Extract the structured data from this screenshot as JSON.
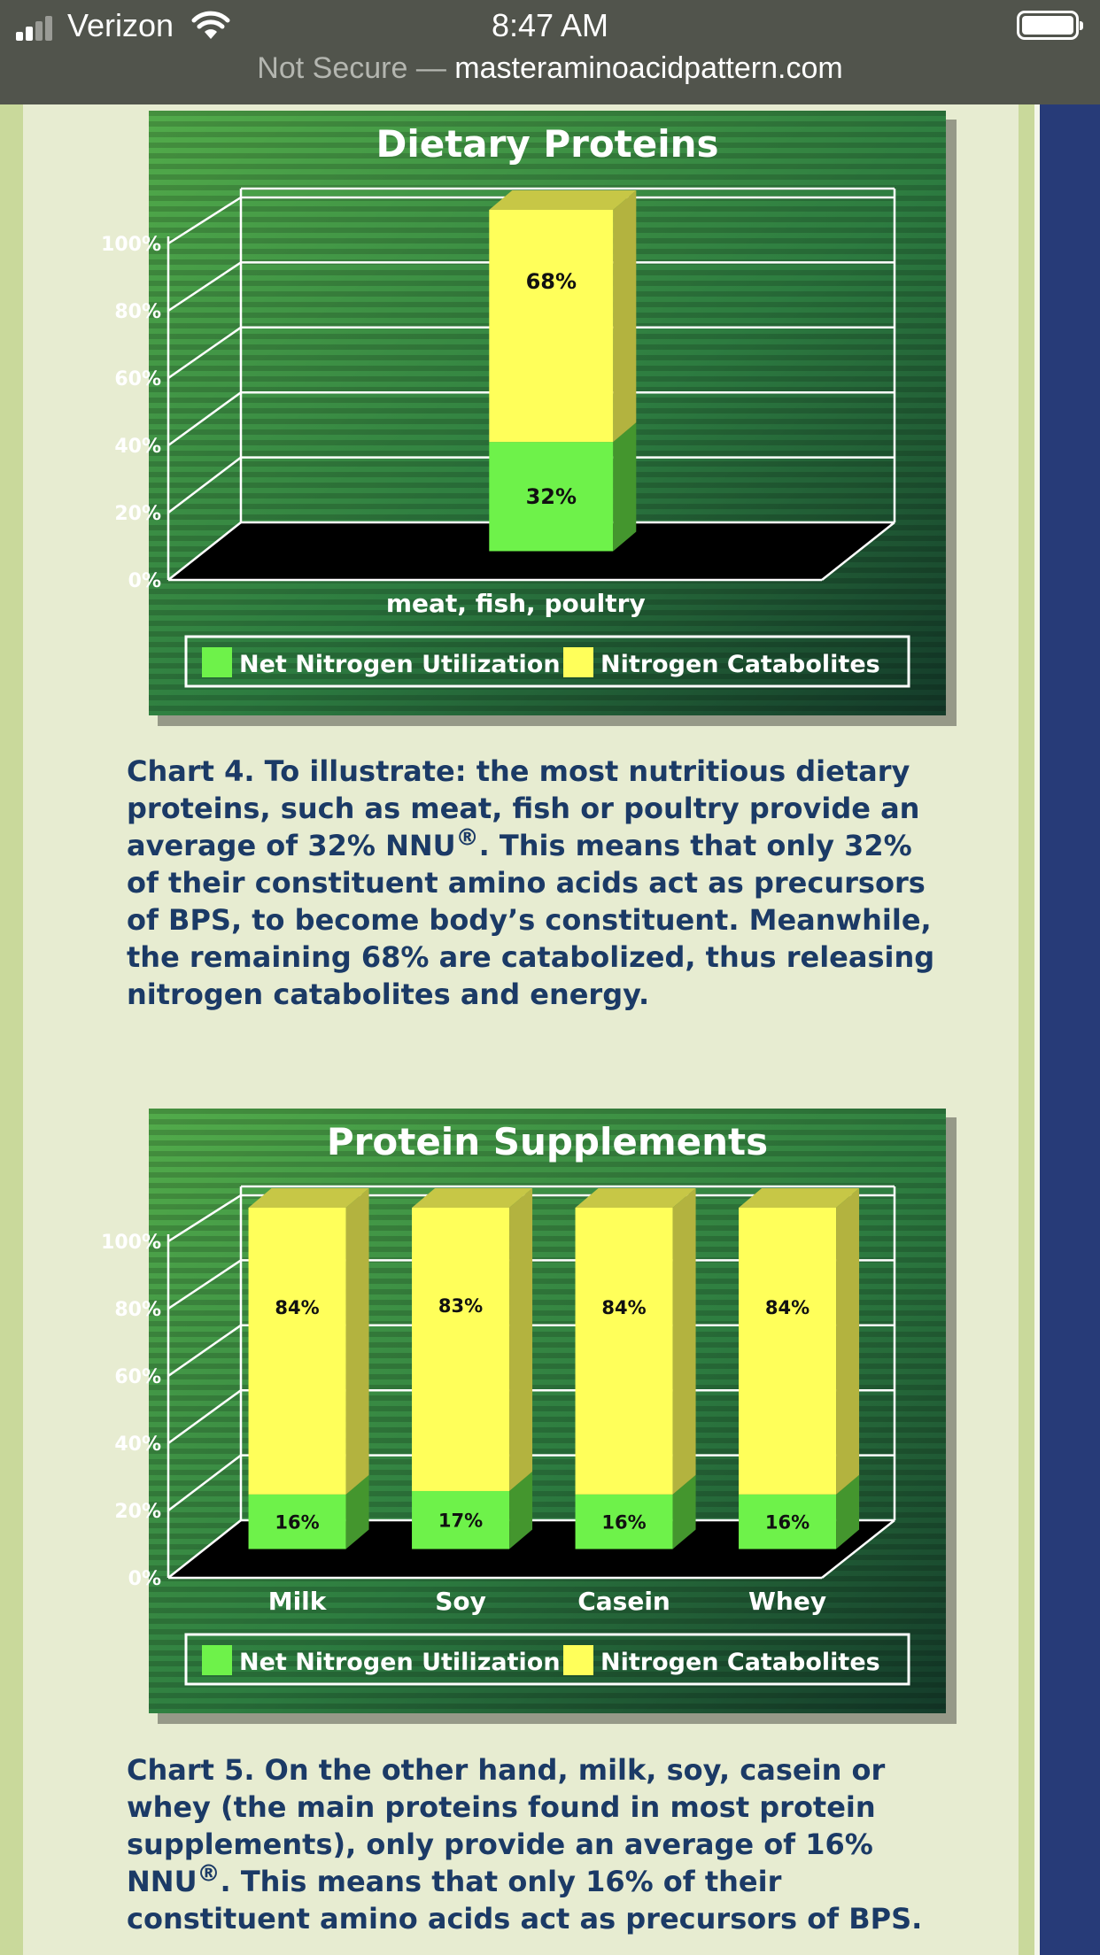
{
  "status_bar": {
    "carrier": "Verizon",
    "time": "8:47 AM",
    "url_prefix": "Not Secure —",
    "url_host": "masteraminoacidpattern.com"
  },
  "charts": [
    {
      "title": "Dietary Proteins",
      "y_ticks": [
        "0%",
        "20%",
        "40%",
        "60%",
        "80%",
        "100%"
      ],
      "legend": [
        "Net Nitrogen Utilization",
        "Nitrogen Catabolites"
      ]
    },
    {
      "title": "Protein Supplements",
      "y_ticks": [
        "0%",
        "20%",
        "40%",
        "60%",
        "80%",
        "100%"
      ],
      "legend": [
        "Net Nitrogen Utilization",
        "Nitrogen Catabolites"
      ]
    }
  ],
  "chart_data": [
    {
      "type": "bar",
      "stacked": true,
      "title": "Dietary Proteins",
      "categories": [
        "meat, fish, poultry"
      ],
      "series": [
        {
          "name": "Net Nitrogen Utilization",
          "values": [
            32
          ],
          "labels": [
            "32%"
          ],
          "color": "#6ef24a"
        },
        {
          "name": "Nitrogen Catabolites",
          "values": [
            68
          ],
          "labels": [
            "68%"
          ],
          "color": "#ffff5a"
        }
      ],
      "ylim": [
        0,
        100
      ],
      "grid": true,
      "legend": "bottom"
    },
    {
      "type": "bar",
      "stacked": true,
      "title": "Protein Supplements",
      "categories": [
        "Milk",
        "Soy",
        "Casein",
        "Whey"
      ],
      "series": [
        {
          "name": "Net Nitrogen Utilization",
          "values": [
            16,
            17,
            16,
            16
          ],
          "labels": [
            "16%",
            "17%",
            "16%",
            "16%"
          ],
          "color": "#6ef24a"
        },
        {
          "name": "Nitrogen Catabolites",
          "values": [
            84,
            83,
            84,
            84
          ],
          "labels": [
            "84%",
            "83%",
            "84%",
            "84%"
          ],
          "color": "#ffff5a"
        }
      ],
      "ylim": [
        0,
        100
      ],
      "grid": true,
      "legend": "bottom"
    }
  ],
  "captions": [
    {
      "before_reg": "Chart 4. To illustrate: the most nutritious dietary proteins, such as meat, fish or poultry provide an average of 32% NNU",
      "reg": "®",
      "after_reg": ". This means that only 32% of their constituent amino acids act as precursors of BPS, to become body’s constituent. Meanwhile, the remaining 68% are catabolized, thus releasing nitrogen catabolites and energy."
    },
    {
      "before_reg": "Chart 5. On the other hand, milk, soy, casein or whey (the main proteins found in most protein supplements), only provide an average of 16% NNU",
      "reg": "®",
      "after_reg": ". This means that only 16% of their constituent amino acids act as precursors of BPS."
    }
  ]
}
